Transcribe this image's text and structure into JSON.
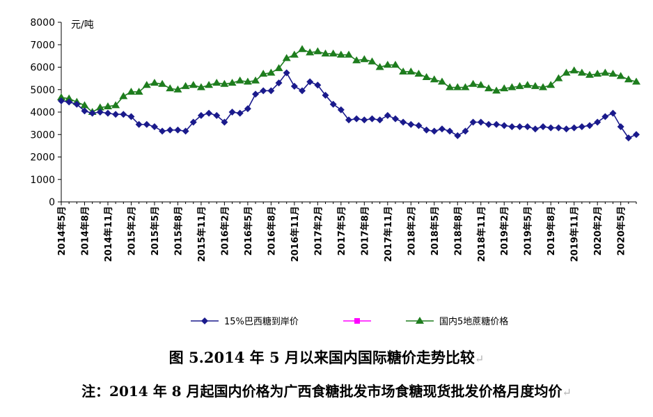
{
  "figure": {
    "title": "图 5.2014 年 5 月以来国内国际糖价走势比较",
    "note": "注：2014 年 8 月起国内价格为广西食糖批发市场食糖现货批发价格月度均价"
  },
  "chart_data": {
    "type": "line",
    "ylabel": "元/吨",
    "ylim": [
      0,
      8000
    ],
    "yticks": [
      0,
      1000,
      2000,
      3000,
      4000,
      5000,
      6000,
      7000,
      8000
    ],
    "grid": false,
    "legend_position": "bottom",
    "x_tick_labels": [
      "2014年5月",
      "2014年8月",
      "2014年11月",
      "2015年2月",
      "2015年5月",
      "2015年8月",
      "2015年11月",
      "2016年2月",
      "2016年5月",
      "2016年8月",
      "2016年11月",
      "2017年2月",
      "2017年5月",
      "2017年8月",
      "2017年11月",
      "2018年2月",
      "2018年5月",
      "2018年8月",
      "2018年11月",
      "2019年2月",
      "2019年5月",
      "2019年8月",
      "2019年11月",
      "2020年2月",
      "2020年5月"
    ],
    "x_start": "2014年5月",
    "series": [
      {
        "name": "15%巴西糖到岸价",
        "color": "#1a1a8c",
        "marker": "diamond",
        "values": [
          4500,
          4450,
          4350,
          4050,
          3950,
          4000,
          3950,
          3900,
          3900,
          3800,
          3450,
          3450,
          3350,
          3150,
          3200,
          3200,
          3150,
          3550,
          3850,
          3950,
          3850,
          3550,
          4000,
          3950,
          4150,
          4800,
          4950,
          4950,
          5300,
          5750,
          5150,
          4950,
          5350,
          5200,
          4750,
          4350,
          4100,
          3650,
          3700,
          3650,
          3700,
          3650,
          3850,
          3700,
          3550,
          3450,
          3400,
          3200,
          3150,
          3250,
          3150,
          2950,
          3150,
          3550,
          3550,
          3450,
          3450,
          3400,
          3350,
          3350,
          3350,
          3250,
          3350,
          3300,
          3300,
          3250,
          3300,
          3350,
          3400,
          3550,
          3800,
          3950,
          3350,
          2850,
          3000
        ]
      },
      {
        "name": "",
        "color": "#ff00ff",
        "marker": "square",
        "values": []
      },
      {
        "name": "国内5地蔗糖价格",
        "color": "#1e7d1e",
        "marker": "triangle",
        "values": [
          4650,
          4600,
          4450,
          4300,
          4000,
          4200,
          4250,
          4300,
          4700,
          4900,
          4900,
          5200,
          5300,
          5250,
          5050,
          5000,
          5150,
          5200,
          5100,
          5200,
          5300,
          5250,
          5300,
          5400,
          5350,
          5400,
          5700,
          5750,
          5950,
          6400,
          6550,
          6800,
          6650,
          6700,
          6600,
          6600,
          6550,
          6550,
          6300,
          6350,
          6250,
          6000,
          6100,
          6100,
          5800,
          5800,
          5700,
          5550,
          5450,
          5350,
          5100,
          5100,
          5100,
          5250,
          5200,
          5050,
          4950,
          5050,
          5100,
          5150,
          5200,
          5150,
          5100,
          5200,
          5500,
          5750,
          5850,
          5750,
          5650,
          5700,
          5750,
          5700,
          5600,
          5450,
          5350
        ]
      }
    ]
  }
}
